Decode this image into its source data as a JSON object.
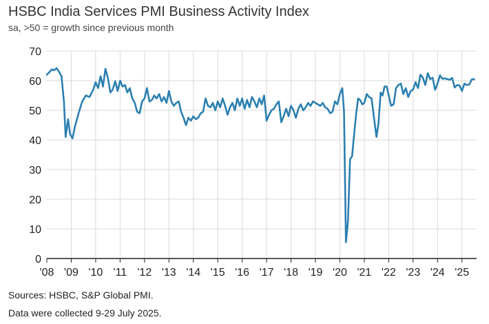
{
  "header": {
    "title": "HSBC India Services PMI Business Activity Index",
    "subtitle": "sa, >50 = growth since previous month"
  },
  "footer": {
    "sources": "Sources: HSBC, S&P Global PMI.",
    "collected": "Data were collected 9-29 July 2025."
  },
  "colors": {
    "line": "#2b7fb0",
    "grid": "#d9d9d9",
    "axis": "#222222"
  },
  "chart_data": {
    "type": "line",
    "grid": true,
    "ylim": [
      0,
      70
    ],
    "yticks": [
      0,
      10,
      20,
      30,
      40,
      50,
      60,
      70
    ],
    "xlim": [
      2008,
      2025.6
    ],
    "xticks": [
      2008,
      2009,
      2010,
      2011,
      2012,
      2013,
      2014,
      2015,
      2016,
      2017,
      2018,
      2019,
      2020,
      2021,
      2022,
      2023,
      2024,
      2025
    ],
    "xtick_labels": [
      "'08",
      "'09",
      "'10",
      "'11",
      "'12",
      "'13",
      "'14",
      "'15",
      "'16",
      "'17",
      "'18",
      "'19",
      "'20",
      "'21",
      "'22",
      "'23",
      "'24",
      "'25"
    ],
    "series": [
      {
        "points": [
          [
            2008.0,
            62.0
          ],
          [
            2008.1,
            62.8
          ],
          [
            2008.2,
            63.8
          ],
          [
            2008.3,
            63.5
          ],
          [
            2008.4,
            64.2
          ],
          [
            2008.5,
            63.0
          ],
          [
            2008.6,
            61.5
          ],
          [
            2008.7,
            53.0
          ],
          [
            2008.77,
            41.0
          ],
          [
            2008.87,
            47.0
          ],
          [
            2008.95,
            42.0
          ],
          [
            2009.05,
            40.5
          ],
          [
            2009.15,
            44.5
          ],
          [
            2009.3,
            49.0
          ],
          [
            2009.45,
            53.0
          ],
          [
            2009.6,
            55.0
          ],
          [
            2009.75,
            54.5
          ],
          [
            2009.9,
            57.0
          ],
          [
            2010.0,
            59.5
          ],
          [
            2010.1,
            57.5
          ],
          [
            2010.2,
            61.5
          ],
          [
            2010.3,
            58.0
          ],
          [
            2010.4,
            64.0
          ],
          [
            2010.5,
            61.0
          ],
          [
            2010.6,
            56.0
          ],
          [
            2010.7,
            57.0
          ],
          [
            2010.8,
            59.8
          ],
          [
            2010.9,
            56.5
          ],
          [
            2011.0,
            60.0
          ],
          [
            2011.1,
            58.0
          ],
          [
            2011.2,
            58.5
          ],
          [
            2011.3,
            56.0
          ],
          [
            2011.4,
            57.5
          ],
          [
            2011.5,
            54.0
          ],
          [
            2011.6,
            52.5
          ],
          [
            2011.7,
            49.5
          ],
          [
            2011.8,
            49.0
          ],
          [
            2011.9,
            53.0
          ],
          [
            2012.0,
            54.0
          ],
          [
            2012.1,
            57.5
          ],
          [
            2012.2,
            53.0
          ],
          [
            2012.3,
            53.5
          ],
          [
            2012.4,
            55.0
          ],
          [
            2012.5,
            54.0
          ],
          [
            2012.6,
            55.5
          ],
          [
            2012.7,
            53.0
          ],
          [
            2012.8,
            54.5
          ],
          [
            2012.9,
            52.5
          ],
          [
            2013.0,
            56.5
          ],
          [
            2013.1,
            53.0
          ],
          [
            2013.2,
            51.5
          ],
          [
            2013.3,
            52.5
          ],
          [
            2013.4,
            53.0
          ],
          [
            2013.5,
            49.5
          ],
          [
            2013.6,
            47.5
          ],
          [
            2013.7,
            45.0
          ],
          [
            2013.8,
            47.5
          ],
          [
            2013.9,
            46.5
          ],
          [
            2014.0,
            48.0
          ],
          [
            2014.1,
            47.0
          ],
          [
            2014.2,
            47.5
          ],
          [
            2014.3,
            49.0
          ],
          [
            2014.4,
            49.5
          ],
          [
            2014.5,
            54.0
          ],
          [
            2014.6,
            51.5
          ],
          [
            2014.7,
            51.0
          ],
          [
            2014.8,
            52.5
          ],
          [
            2014.9,
            50.0
          ],
          [
            2015.0,
            53.0
          ],
          [
            2015.1,
            51.0
          ],
          [
            2015.2,
            54.0
          ],
          [
            2015.3,
            51.5
          ],
          [
            2015.4,
            48.5
          ],
          [
            2015.5,
            51.0
          ],
          [
            2015.6,
            52.5
          ],
          [
            2015.7,
            50.0
          ],
          [
            2015.8,
            54.0
          ],
          [
            2015.9,
            51.5
          ],
          [
            2016.0,
            54.0
          ],
          [
            2016.1,
            50.5
          ],
          [
            2016.2,
            53.5
          ],
          [
            2016.3,
            51.0
          ],
          [
            2016.4,
            54.5
          ],
          [
            2016.5,
            53.0
          ],
          [
            2016.6,
            51.0
          ],
          [
            2016.7,
            54.0
          ],
          [
            2016.8,
            52.0
          ],
          [
            2016.9,
            55.0
          ],
          [
            2017.0,
            46.5
          ],
          [
            2017.1,
            48.5
          ],
          [
            2017.2,
            50.0
          ],
          [
            2017.3,
            50.5
          ],
          [
            2017.4,
            52.0
          ],
          [
            2017.5,
            53.0
          ],
          [
            2017.6,
            46.0
          ],
          [
            2017.7,
            48.0
          ],
          [
            2017.8,
            50.5
          ],
          [
            2017.9,
            48.0
          ],
          [
            2018.0,
            51.5
          ],
          [
            2018.1,
            50.0
          ],
          [
            2018.2,
            47.5
          ],
          [
            2018.3,
            50.5
          ],
          [
            2018.4,
            52.0
          ],
          [
            2018.5,
            50.0
          ],
          [
            2018.6,
            51.0
          ],
          [
            2018.7,
            52.5
          ],
          [
            2018.8,
            51.5
          ],
          [
            2018.9,
            53.0
          ],
          [
            2019.0,
            52.5
          ],
          [
            2019.1,
            52.0
          ],
          [
            2019.2,
            51.5
          ],
          [
            2019.3,
            52.5
          ],
          [
            2019.4,
            51.0
          ],
          [
            2019.5,
            50.5
          ],
          [
            2019.6,
            49.0
          ],
          [
            2019.7,
            49.5
          ],
          [
            2019.8,
            53.0
          ],
          [
            2019.9,
            52.0
          ],
          [
            2020.0,
            55.5
          ],
          [
            2020.1,
            57.5
          ],
          [
            2020.17,
            49.5
          ],
          [
            2020.25,
            5.5
          ],
          [
            2020.33,
            12.5
          ],
          [
            2020.42,
            33.5
          ],
          [
            2020.5,
            34.5
          ],
          [
            2020.58,
            41.5
          ],
          [
            2020.67,
            49.0
          ],
          [
            2020.75,
            54.0
          ],
          [
            2020.83,
            53.5
          ],
          [
            2020.92,
            52.0
          ],
          [
            2021.0,
            52.5
          ],
          [
            2021.1,
            55.5
          ],
          [
            2021.2,
            54.5
          ],
          [
            2021.3,
            54.0
          ],
          [
            2021.42,
            46.0
          ],
          [
            2021.5,
            41.0
          ],
          [
            2021.58,
            45.5
          ],
          [
            2021.67,
            56.0
          ],
          [
            2021.75,
            55.0
          ],
          [
            2021.83,
            58.0
          ],
          [
            2021.92,
            58.0
          ],
          [
            2022.0,
            55.0
          ],
          [
            2022.1,
            51.5
          ],
          [
            2022.2,
            52.0
          ],
          [
            2022.3,
            57.5
          ],
          [
            2022.4,
            58.5
          ],
          [
            2022.5,
            59.0
          ],
          [
            2022.6,
            55.5
          ],
          [
            2022.7,
            57.5
          ],
          [
            2022.8,
            54.5
          ],
          [
            2022.9,
            56.5
          ],
          [
            2023.0,
            57.0
          ],
          [
            2023.1,
            59.5
          ],
          [
            2023.2,
            57.5
          ],
          [
            2023.3,
            62.0
          ],
          [
            2023.4,
            61.0
          ],
          [
            2023.5,
            58.5
          ],
          [
            2023.6,
            62.5
          ],
          [
            2023.7,
            60.5
          ],
          [
            2023.8,
            61.0
          ],
          [
            2023.9,
            56.9
          ],
          [
            2024.0,
            59.0
          ],
          [
            2024.1,
            61.8
          ],
          [
            2024.2,
            60.6
          ],
          [
            2024.3,
            60.8
          ],
          [
            2024.4,
            60.5
          ],
          [
            2024.5,
            60.3
          ],
          [
            2024.6,
            60.9
          ],
          [
            2024.7,
            57.7
          ],
          [
            2024.8,
            58.5
          ],
          [
            2024.9,
            58.4
          ],
          [
            2025.0,
            56.5
          ],
          [
            2025.1,
            59.0
          ],
          [
            2025.2,
            58.5
          ],
          [
            2025.3,
            58.7
          ],
          [
            2025.4,
            60.4
          ],
          [
            2025.5,
            60.5
          ]
        ]
      }
    ]
  }
}
